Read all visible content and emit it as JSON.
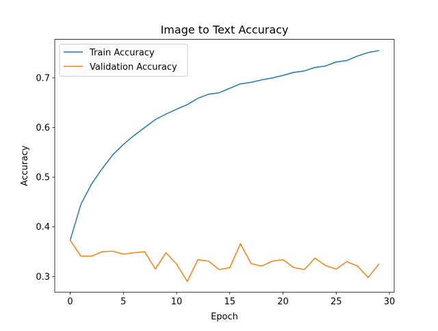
{
  "chart_data": {
    "type": "line",
    "title": "Image to Text Accuracy",
    "xlabel": "Epoch",
    "ylabel": "Accuracy",
    "xlim": [
      -1.45,
      30.45
    ],
    "ylim": [
      0.2685,
      0.7775
    ],
    "xticks": [
      0,
      5,
      10,
      15,
      20,
      25,
      30
    ],
    "yticks": [
      0.3,
      0.4,
      0.5,
      0.6,
      0.7
    ],
    "xtick_labels": [
      "0",
      "5",
      "10",
      "15",
      "20",
      "25",
      "30"
    ],
    "ytick_labels": [
      "0.3",
      "0.4",
      "0.5",
      "0.6",
      "0.7"
    ],
    "grid": false,
    "legend_position": "upper-left",
    "x": [
      0,
      1,
      2,
      3,
      4,
      5,
      6,
      7,
      8,
      9,
      10,
      11,
      12,
      13,
      14,
      15,
      16,
      17,
      18,
      19,
      20,
      21,
      22,
      23,
      24,
      25,
      26,
      27,
      28,
      29
    ],
    "series": [
      {
        "name": "Train Accuracy",
        "color": "#1f77b4",
        "values": [
          0.373,
          0.445,
          0.486,
          0.517,
          0.545,
          0.566,
          0.584,
          0.6,
          0.616,
          0.627,
          0.637,
          0.646,
          0.659,
          0.667,
          0.67,
          0.679,
          0.688,
          0.691,
          0.696,
          0.7,
          0.705,
          0.711,
          0.714,
          0.721,
          0.724,
          0.732,
          0.735,
          0.744,
          0.751,
          0.755
        ]
      },
      {
        "name": "Validation Accuracy",
        "color": "#ff7f0e",
        "values": [
          0.373,
          0.341,
          0.341,
          0.35,
          0.351,
          0.345,
          0.348,
          0.35,
          0.315,
          0.348,
          0.325,
          0.29,
          0.334,
          0.331,
          0.314,
          0.318,
          0.366,
          0.326,
          0.321,
          0.331,
          0.334,
          0.318,
          0.314,
          0.337,
          0.322,
          0.315,
          0.33,
          0.321,
          0.298,
          0.325
        ]
      }
    ]
  }
}
